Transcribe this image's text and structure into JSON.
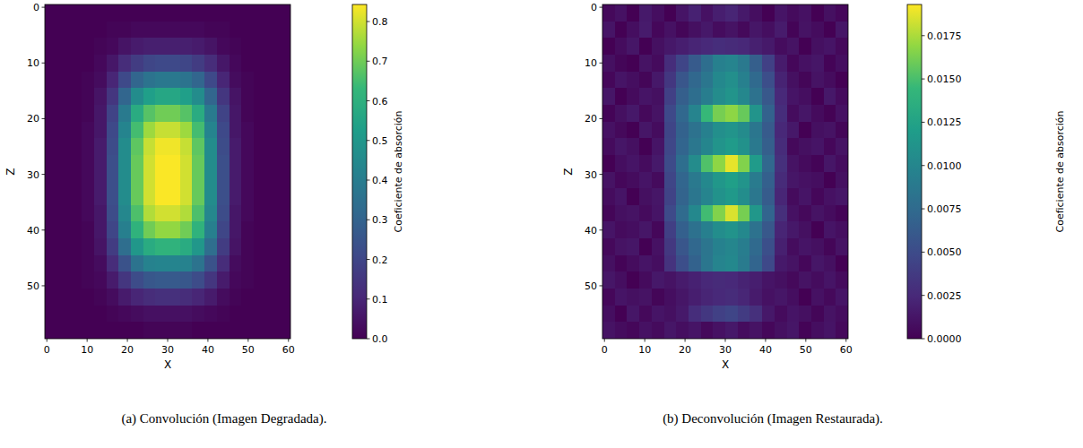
{
  "chart_data": [
    {
      "type": "heatmap",
      "caption": "(a) Convolución (Imagen Degradada).",
      "x_label": "X",
      "y_label": "Z",
      "xlim": [
        -0.5,
        60.5
      ],
      "ylim": [
        59.5,
        -0.5
      ],
      "xticks": [
        0,
        10,
        20,
        30,
        40,
        50,
        60
      ],
      "yticks": [
        0,
        10,
        20,
        30,
        40,
        50
      ],
      "cells": [
        [
          0,
          0,
          0,
          0,
          0,
          0,
          0,
          0,
          0,
          0,
          0,
          0,
          0,
          0,
          0,
          0,
          0,
          0,
          0,
          0
        ],
        [
          0,
          0,
          0,
          0,
          0,
          0.01,
          0.01,
          0.02,
          0.02,
          0.02,
          0.02,
          0.02,
          0.02,
          0.01,
          0.01,
          0,
          0,
          0,
          0,
          0
        ],
        [
          0,
          0,
          0,
          0,
          0.01,
          0.02,
          0.05,
          0.07,
          0.08,
          0.08,
          0.08,
          0.08,
          0.07,
          0.05,
          0.02,
          0.01,
          0,
          0,
          0,
          0
        ],
        [
          0,
          0,
          0,
          0,
          0.02,
          0.06,
          0.12,
          0.17,
          0.2,
          0.21,
          0.21,
          0.2,
          0.17,
          0.12,
          0.06,
          0.02,
          0,
          0,
          0,
          0
        ],
        [
          0,
          0,
          0,
          0.01,
          0.03,
          0.1,
          0.21,
          0.31,
          0.36,
          0.38,
          0.38,
          0.36,
          0.31,
          0.21,
          0.1,
          0.03,
          0.01,
          0,
          0,
          0
        ],
        [
          0,
          0,
          0,
          0.01,
          0.05,
          0.15,
          0.31,
          0.46,
          0.53,
          0.56,
          0.56,
          0.53,
          0.46,
          0.31,
          0.15,
          0.05,
          0.01,
          0,
          0,
          0
        ],
        [
          0,
          0,
          0,
          0.01,
          0.06,
          0.19,
          0.39,
          0.58,
          0.67,
          0.7,
          0.7,
          0.67,
          0.58,
          0.39,
          0.19,
          0.06,
          0.01,
          0,
          0,
          0
        ],
        [
          0,
          0,
          0,
          0.02,
          0.06,
          0.21,
          0.43,
          0.65,
          0.75,
          0.79,
          0.79,
          0.75,
          0.65,
          0.43,
          0.21,
          0.06,
          0.02,
          0,
          0,
          0
        ],
        [
          0,
          0,
          0,
          0.02,
          0.07,
          0.22,
          0.46,
          0.68,
          0.79,
          0.83,
          0.83,
          0.79,
          0.68,
          0.46,
          0.22,
          0.07,
          0.02,
          0,
          0,
          0
        ],
        [
          0,
          0,
          0,
          0.02,
          0.07,
          0.23,
          0.46,
          0.69,
          0.8,
          0.84,
          0.84,
          0.8,
          0.69,
          0.46,
          0.23,
          0.07,
          0.02,
          0,
          0,
          0
        ],
        [
          0,
          0,
          0,
          0.02,
          0.07,
          0.23,
          0.46,
          0.69,
          0.8,
          0.84,
          0.84,
          0.8,
          0.69,
          0.46,
          0.23,
          0.07,
          0.02,
          0,
          0,
          0
        ],
        [
          0,
          0,
          0,
          0.02,
          0.07,
          0.23,
          0.46,
          0.69,
          0.8,
          0.84,
          0.84,
          0.8,
          0.69,
          0.46,
          0.23,
          0.07,
          0.02,
          0,
          0,
          0
        ],
        [
          0,
          0,
          0,
          0.02,
          0.06,
          0.22,
          0.44,
          0.66,
          0.77,
          0.8,
          0.8,
          0.77,
          0.66,
          0.44,
          0.22,
          0.06,
          0.02,
          0,
          0,
          0
        ],
        [
          0,
          0,
          0,
          0.01,
          0.06,
          0.2,
          0.41,
          0.61,
          0.7,
          0.74,
          0.74,
          0.7,
          0.61,
          0.41,
          0.2,
          0.06,
          0.01,
          0,
          0,
          0
        ],
        [
          0,
          0,
          0,
          0.01,
          0.05,
          0.17,
          0.34,
          0.5,
          0.58,
          0.61,
          0.61,
          0.58,
          0.5,
          0.34,
          0.17,
          0.05,
          0.01,
          0,
          0,
          0
        ],
        [
          0,
          0,
          0,
          0.01,
          0.03,
          0.12,
          0.24,
          0.36,
          0.42,
          0.43,
          0.43,
          0.42,
          0.36,
          0.24,
          0.12,
          0.03,
          0.01,
          0,
          0,
          0
        ],
        [
          0,
          0,
          0,
          0.01,
          0.02,
          0.07,
          0.15,
          0.22,
          0.26,
          0.27,
          0.27,
          0.26,
          0.22,
          0.15,
          0.07,
          0.02,
          0.01,
          0,
          0,
          0
        ],
        [
          0,
          0,
          0,
          0,
          0.01,
          0.03,
          0.07,
          0.1,
          0.12,
          0.13,
          0.13,
          0.12,
          0.1,
          0.07,
          0.03,
          0.01,
          0,
          0,
          0,
          0
        ],
        [
          0,
          0,
          0,
          0,
          0,
          0.01,
          0.02,
          0.03,
          0.04,
          0.04,
          0.04,
          0.04,
          0.03,
          0.02,
          0.01,
          0,
          0,
          0,
          0,
          0
        ],
        [
          0,
          0,
          0,
          0,
          0,
          0,
          0,
          0,
          0.01,
          0.01,
          0.01,
          0.01,
          0,
          0,
          0,
          0,
          0,
          0,
          0,
          0
        ]
      ],
      "colorbar": {
        "label": "Coeficiente de absorción",
        "range": [
          0,
          0.843
        ],
        "ticks": [
          {
            "value": 0,
            "label": "0.0"
          },
          {
            "value": 0.1,
            "label": "0.1"
          },
          {
            "value": 0.2,
            "label": "0.2"
          },
          {
            "value": 0.3,
            "label": "0.3"
          },
          {
            "value": 0.4,
            "label": "0.4"
          },
          {
            "value": 0.5,
            "label": "0.5"
          },
          {
            "value": 0.6,
            "label": "0.6"
          },
          {
            "value": 0.7,
            "label": "0.7"
          },
          {
            "value": 0.8,
            "label": "0.8"
          }
        ]
      }
    },
    {
      "type": "heatmap",
      "caption": "(b) Deconvolución (Imagen Restaurada).",
      "x_label": "X",
      "y_label": "Z",
      "xlim": [
        -0.5,
        60.5
      ],
      "ylim": [
        59.5,
        -0.5
      ],
      "xticks": [
        0,
        10,
        20,
        30,
        40,
        50,
        60
      ],
      "yticks": [
        0,
        10,
        20,
        30,
        40,
        50
      ],
      "cells": [
        [
          0.0005,
          0.001,
          0,
          0.0015,
          0.0008,
          0,
          0.0012,
          0.002,
          0.001,
          0.0018,
          0.0022,
          0.0015,
          0.0008,
          0,
          0.0012,
          0.0006,
          0.001,
          0,
          0.0009,
          0.0004
        ],
        [
          0.0012,
          0,
          0.0008,
          0.0016,
          0.0004,
          0.001,
          0.0003,
          0.0009,
          0.0014,
          0.0007,
          0.0011,
          0.0005,
          0.0013,
          0.0008,
          0.0016,
          0.0002,
          0.0011,
          0.0007,
          0,
          0.0013
        ],
        [
          0,
          0.0007,
          0.0013,
          0,
          0.0009,
          0.0014,
          0.0018,
          0.0022,
          0.0025,
          0.0028,
          0.0026,
          0.0024,
          0.0019,
          0.0015,
          0.0007,
          0.0011,
          0,
          0.0009,
          0.0012,
          0.0005
        ],
        [
          0.0009,
          0.0003,
          0,
          0.0011,
          0.0006,
          0.0028,
          0.0045,
          0.0062,
          0.0078,
          0.0095,
          0.0098,
          0.0088,
          0.0065,
          0.0042,
          0.0016,
          0.0004,
          0.001,
          0.0013,
          0.0002,
          0.0008
        ],
        [
          0.0004,
          0.0012,
          0.0008,
          0.0003,
          0.0014,
          0.0035,
          0.0058,
          0.0072,
          0.0085,
          0.0102,
          0.0108,
          0.0095,
          0.0074,
          0.0052,
          0.0021,
          0.0009,
          0.0003,
          0.0011,
          0.0007,
          0
        ],
        [
          0.0013,
          0,
          0.0006,
          0.0012,
          0.0009,
          0.0042,
          0.0065,
          0.0078,
          0.0092,
          0.0105,
          0.0112,
          0.0101,
          0.0082,
          0.006,
          0.0025,
          0.0012,
          0.0008,
          0,
          0.0014,
          0.0006
        ],
        [
          0.0002,
          0.0009,
          0.0014,
          0.0005,
          0.0011,
          0.0048,
          0.0072,
          0.0098,
          0.0145,
          0.0162,
          0.0168,
          0.0158,
          0.0112,
          0.0068,
          0.0028,
          0.0007,
          0.0013,
          0.0006,
          0.0001,
          0.001
        ],
        [
          0.001,
          0.0005,
          0,
          0.0013,
          0.0007,
          0.0045,
          0.0068,
          0.0082,
          0.0095,
          0.0108,
          0.0112,
          0.0104,
          0.0085,
          0.0062,
          0.0024,
          0.0014,
          0,
          0.0009,
          0.0011,
          0.0003
        ],
        [
          0.0006,
          0.0013,
          0.0009,
          0,
          0.0012,
          0.0047,
          0.007,
          0.0086,
          0.0099,
          0.0112,
          0.0118,
          0.0109,
          0.0088,
          0.0065,
          0.0027,
          0.0005,
          0.0009,
          0.0012,
          0.0004,
          0.0011
        ],
        [
          0,
          0.0008,
          0.0012,
          0.0007,
          0.0015,
          0.005,
          0.0078,
          0.0105,
          0.0152,
          0.0168,
          0.0188,
          0.0165,
          0.0118,
          0.0072,
          0.003,
          0.0011,
          0.0006,
          0.0002,
          0.0013,
          0.0007
        ],
        [
          0.0011,
          0.0004,
          0.0007,
          0.0012,
          0.0006,
          0.0046,
          0.0071,
          0.0088,
          0.0102,
          0.0115,
          0.0122,
          0.0112,
          0.009,
          0.0066,
          0.0026,
          0.0013,
          0.001,
          0.0008,
          0,
          0.0009
        ],
        [
          0.0007,
          0.0012,
          0,
          0.0009,
          0.0013,
          0.0044,
          0.0069,
          0.0085,
          0.0098,
          0.011,
          0.0116,
          0.0106,
          0.0086,
          0.0063,
          0.0023,
          0.0006,
          0.0012,
          0.0004,
          0.001,
          0.0013
        ],
        [
          0.0003,
          0.0009,
          0.0011,
          0.0006,
          0.0012,
          0.0049,
          0.0075,
          0.0102,
          0.0148,
          0.0165,
          0.0185,
          0.0162,
          0.0115,
          0.007,
          0.0029,
          0.001,
          0.0005,
          0.0011,
          0.0007,
          0.0002
        ],
        [
          0.0012,
          0.0006,
          0.0008,
          0.0013,
          0.0004,
          0.0041,
          0.0066,
          0.0081,
          0.0094,
          0.0106,
          0.0111,
          0.0102,
          0.0082,
          0.006,
          0.0022,
          0.0014,
          0.0009,
          0,
          0.0012,
          0.0008
        ],
        [
          0.0005,
          0.0011,
          0.0013,
          0,
          0.001,
          0.0036,
          0.0058,
          0.0072,
          0.0084,
          0.0096,
          0.01,
          0.0092,
          0.0074,
          0.0053,
          0.0019,
          0.0007,
          0.0012,
          0.0009,
          0.0003,
          0.0011
        ],
        [
          0.0009,
          0.0002,
          0.0007,
          0.0012,
          0.0008,
          0.0032,
          0.0052,
          0.0068,
          0.0085,
          0.0098,
          0.0102,
          0.009,
          0.007,
          0.0048,
          0.0015,
          0.0011,
          0.0004,
          0.0013,
          0.0009,
          0
        ],
        [
          0.0013,
          0.0008,
          0,
          0.0006,
          0.0014,
          0.0011,
          0.0016,
          0.002,
          0.0024,
          0.0026,
          0.0025,
          0.0021,
          0.0018,
          0.0012,
          0.0009,
          0.0005,
          0.0011,
          0.0007,
          0.0012,
          0.0006
        ],
        [
          0.0004,
          0.0012,
          0.0009,
          0.0011,
          0.0003,
          0.0008,
          0.0013,
          0.0018,
          0.0022,
          0.0025,
          0.0027,
          0.0023,
          0.0016,
          0.001,
          0.0013,
          0.0008,
          0,
          0.001,
          0.0005,
          0.0012
        ],
        [
          0.0008,
          0,
          0.0013,
          0.0005,
          0.0012,
          0.0009,
          0.0015,
          0.0028,
          0.0035,
          0.0042,
          0.0045,
          0.0038,
          0.003,
          0.0014,
          0.0006,
          0.0012,
          0.0009,
          0.0003,
          0.0011,
          0.0007
        ],
        [
          0.0011,
          0.0007,
          0.0004,
          0.001,
          0.0006,
          0.0013,
          0.0008,
          0.0012,
          0.0005,
          0.001,
          0.0014,
          0.0007,
          0.0011,
          0.0004,
          0.0009,
          0.0013,
          0.0002,
          0.0008,
          0.0012,
          0.0005
        ]
      ],
      "colorbar": {
        "label": "Coeficiente de absorción",
        "range": [
          0,
          0.0193
        ],
        "ticks": [
          {
            "value": 0,
            "label": "0.0000"
          },
          {
            "value": 0.0025,
            "label": "0.0025"
          },
          {
            "value": 0.005,
            "label": "0.0050"
          },
          {
            "value": 0.0075,
            "label": "0.0075"
          },
          {
            "value": 0.01,
            "label": "0.0100"
          },
          {
            "value": 0.0125,
            "label": "0.0125"
          },
          {
            "value": 0.015,
            "label": "0.0150"
          },
          {
            "value": 0.0175,
            "label": "0.0175"
          }
        ]
      }
    }
  ]
}
